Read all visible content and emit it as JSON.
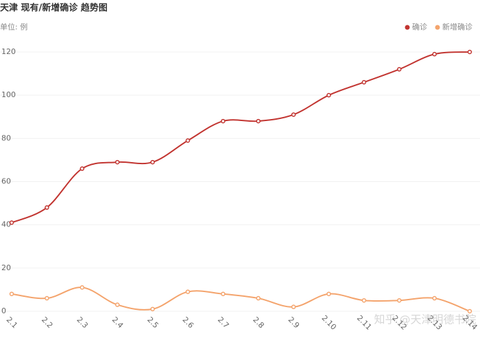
{
  "chart_data": {
    "type": "line",
    "title": "天津 现有/新增确诊 趋势图",
    "subtitle": "单位: 例",
    "watermark": "知乎 @天津明德书院",
    "categories": [
      "2.1",
      "2.2",
      "2.3",
      "2.4",
      "2.5",
      "2.6",
      "2.7",
      "2.8",
      "2.9",
      "2.10",
      "2.11",
      "2.12",
      "2.13",
      "2.14"
    ],
    "series": [
      {
        "name": "确诊",
        "color": "#c23531",
        "values": [
          41,
          48,
          66,
          69,
          69,
          79,
          88,
          88,
          91,
          100,
          106,
          112,
          119,
          120
        ]
      },
      {
        "name": "新增确诊",
        "color": "#f4a46d",
        "values": [
          8,
          6,
          11,
          3,
          1,
          9,
          8,
          6,
          2,
          8,
          5,
          5,
          6,
          0
        ]
      }
    ],
    "ylim": [
      0,
      120
    ],
    "yticks": [
      0,
      20,
      40,
      60,
      80,
      100,
      120
    ],
    "grid": true,
    "legend": "top-right",
    "smooth": true
  }
}
